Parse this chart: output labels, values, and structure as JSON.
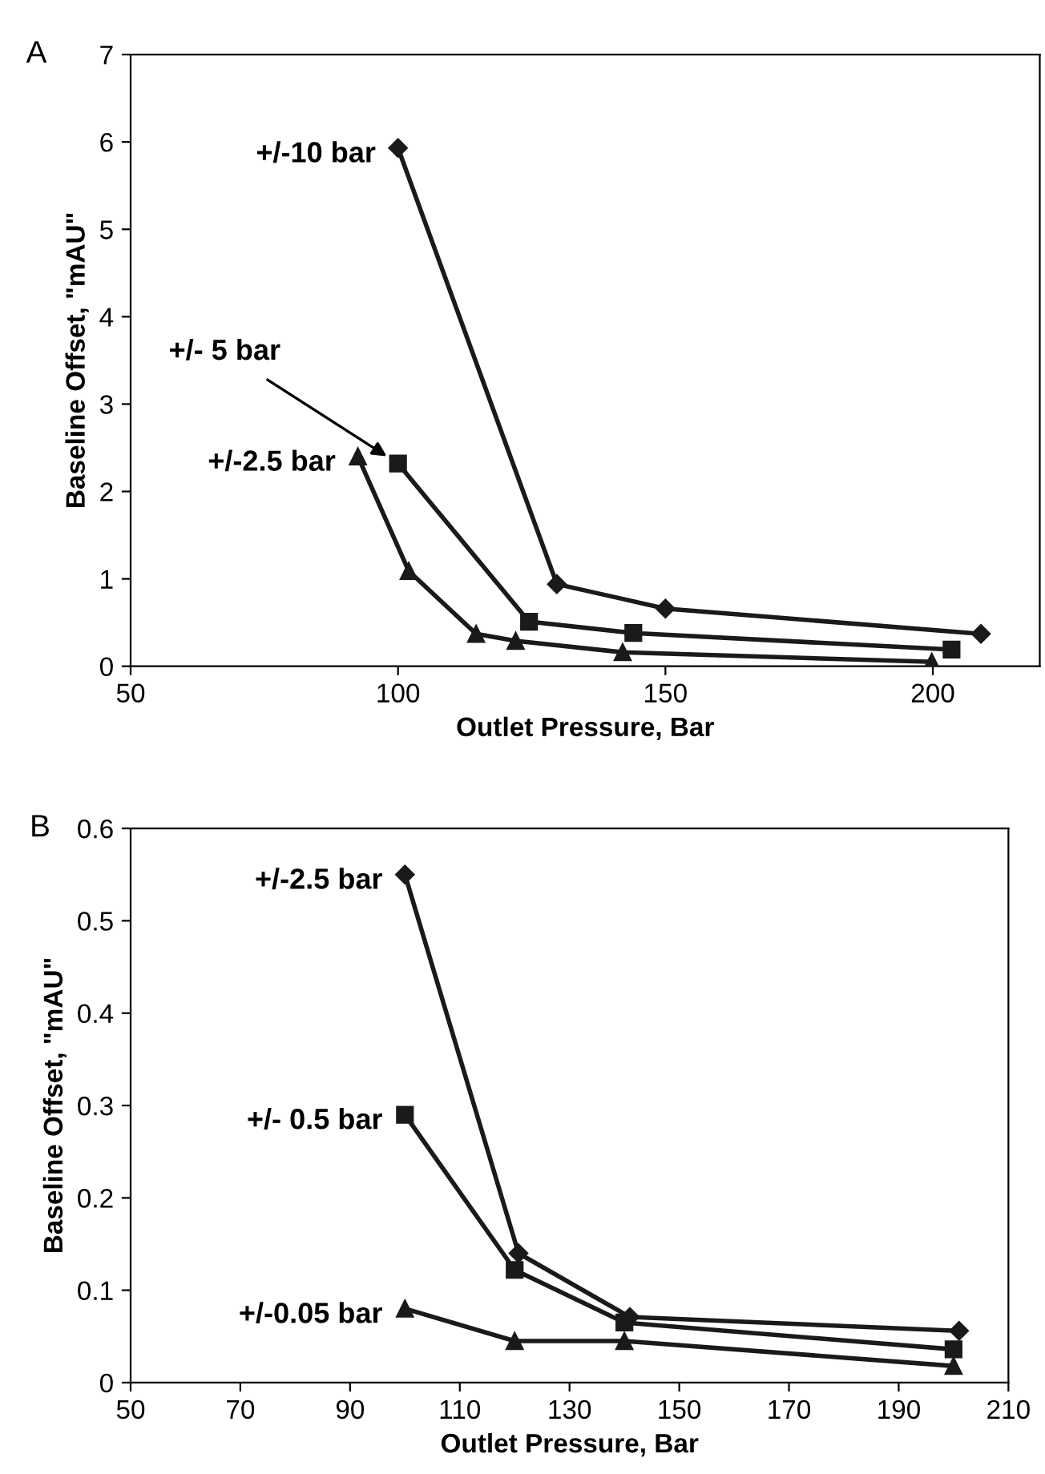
{
  "chart_data": [
    {
      "type": "line",
      "xlabel": "Outlet Pressure, Bar",
      "ylabel": "Baseline Offset, \"mAU\"",
      "xlim": [
        50,
        220
      ],
      "ylim": [
        0,
        7
      ],
      "xticks": [
        50,
        100,
        150,
        200
      ],
      "yticks": [
        0,
        1,
        2,
        3,
        4,
        5,
        6,
        7
      ],
      "grid": false,
      "legend": false,
      "line_style": "solid",
      "annotations": [
        "A"
      ],
      "series": [
        {
          "name": "+/-10 bar",
          "color": "#1a1a1a",
          "marker": "diamond",
          "x": [
            100,
            129.7,
            150,
            209
          ],
          "values": [
            5.93,
            0.94,
            0.66,
            0.37
          ]
        },
        {
          "name": "+/- 5 bar",
          "color": "#1a1a1a",
          "marker": "square",
          "x": [
            100,
            124.5,
            144,
            203.5
          ],
          "values": [
            2.32,
            0.51,
            0.38,
            0.19
          ]
        },
        {
          "name": "+/-2.5 bar",
          "color": "#1a1a1a",
          "marker": "triangle",
          "x": [
            92.5,
            102,
            114.6,
            122,
            142,
            199.8
          ],
          "values": [
            2.4,
            1.09,
            0.37,
            0.29,
            0.16,
            0.05
          ]
        }
      ]
    },
    {
      "type": "line",
      "xlabel": "Outlet Pressure, Bar",
      "ylabel": "Baseline Offset, \"mAU\"",
      "xlim": [
        50,
        210
      ],
      "ylim": [
        0,
        0.6
      ],
      "xticks": [
        50,
        70,
        90,
        110,
        130,
        150,
        170,
        190,
        210
      ],
      "yticks": [
        0,
        0.1,
        0.2,
        0.3,
        0.4,
        0.5,
        0.6
      ],
      "grid": false,
      "legend": false,
      "line_style": "solid",
      "annotations": [
        "B"
      ],
      "series": [
        {
          "name": "+/-2.5 bar",
          "color": "#1a1a1a",
          "marker": "diamond",
          "x": [
            100,
            120.7,
            141,
            201
          ],
          "values": [
            0.55,
            0.14,
            0.071,
            0.056
          ]
        },
        {
          "name": "+/- 0.5 bar",
          "color": "#1a1a1a",
          "marker": "square",
          "x": [
            100,
            120,
            140,
            200
          ],
          "values": [
            0.29,
            0.122,
            0.065,
            0.036
          ]
        },
        {
          "name": "+/-0.05 bar",
          "color": "#1a1a1a",
          "marker": "triangle",
          "x": [
            100,
            120,
            140,
            200
          ],
          "values": [
            0.08,
            0.045,
            0.045,
            0.018
          ]
        }
      ]
    }
  ]
}
